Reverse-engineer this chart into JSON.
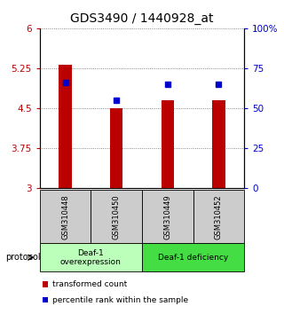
{
  "title": "GDS3490 / 1440928_at",
  "samples": [
    "GSM310448",
    "GSM310450",
    "GSM310449",
    "GSM310452"
  ],
  "red_values": [
    5.32,
    4.5,
    4.66,
    4.66
  ],
  "blue_percentiles": [
    66,
    55,
    65,
    65
  ],
  "ylim_left": [
    3,
    6
  ],
  "ylim_right": [
    0,
    100
  ],
  "yticks_left": [
    3,
    3.75,
    4.5,
    5.25,
    6
  ],
  "ytick_labels_left": [
    "3",
    "3.75",
    "4.5",
    "5.25",
    "6"
  ],
  "yticks_right": [
    0,
    25,
    50,
    75,
    100
  ],
  "ytick_labels_right": [
    "0",
    "25",
    "50",
    "75",
    "100%"
  ],
  "bar_width": 0.25,
  "bar_bottom": 3,
  "red_color": "#bb0000",
  "blue_color": "#0000cc",
  "group1_label": "Deaf-1\noverexpression",
  "group2_label": "Deaf-1 deficiency",
  "group1_color": "#bbffbb",
  "group2_color": "#44dd44",
  "sample_bg_color": "#cccccc",
  "protocol_label": "protocol",
  "legend1": "transformed count",
  "legend2": "percentile rank within the sample",
  "dotted_color": "#666666",
  "title_fontsize": 10,
  "tick_fontsize": 7.5,
  "label_fontsize": 7
}
